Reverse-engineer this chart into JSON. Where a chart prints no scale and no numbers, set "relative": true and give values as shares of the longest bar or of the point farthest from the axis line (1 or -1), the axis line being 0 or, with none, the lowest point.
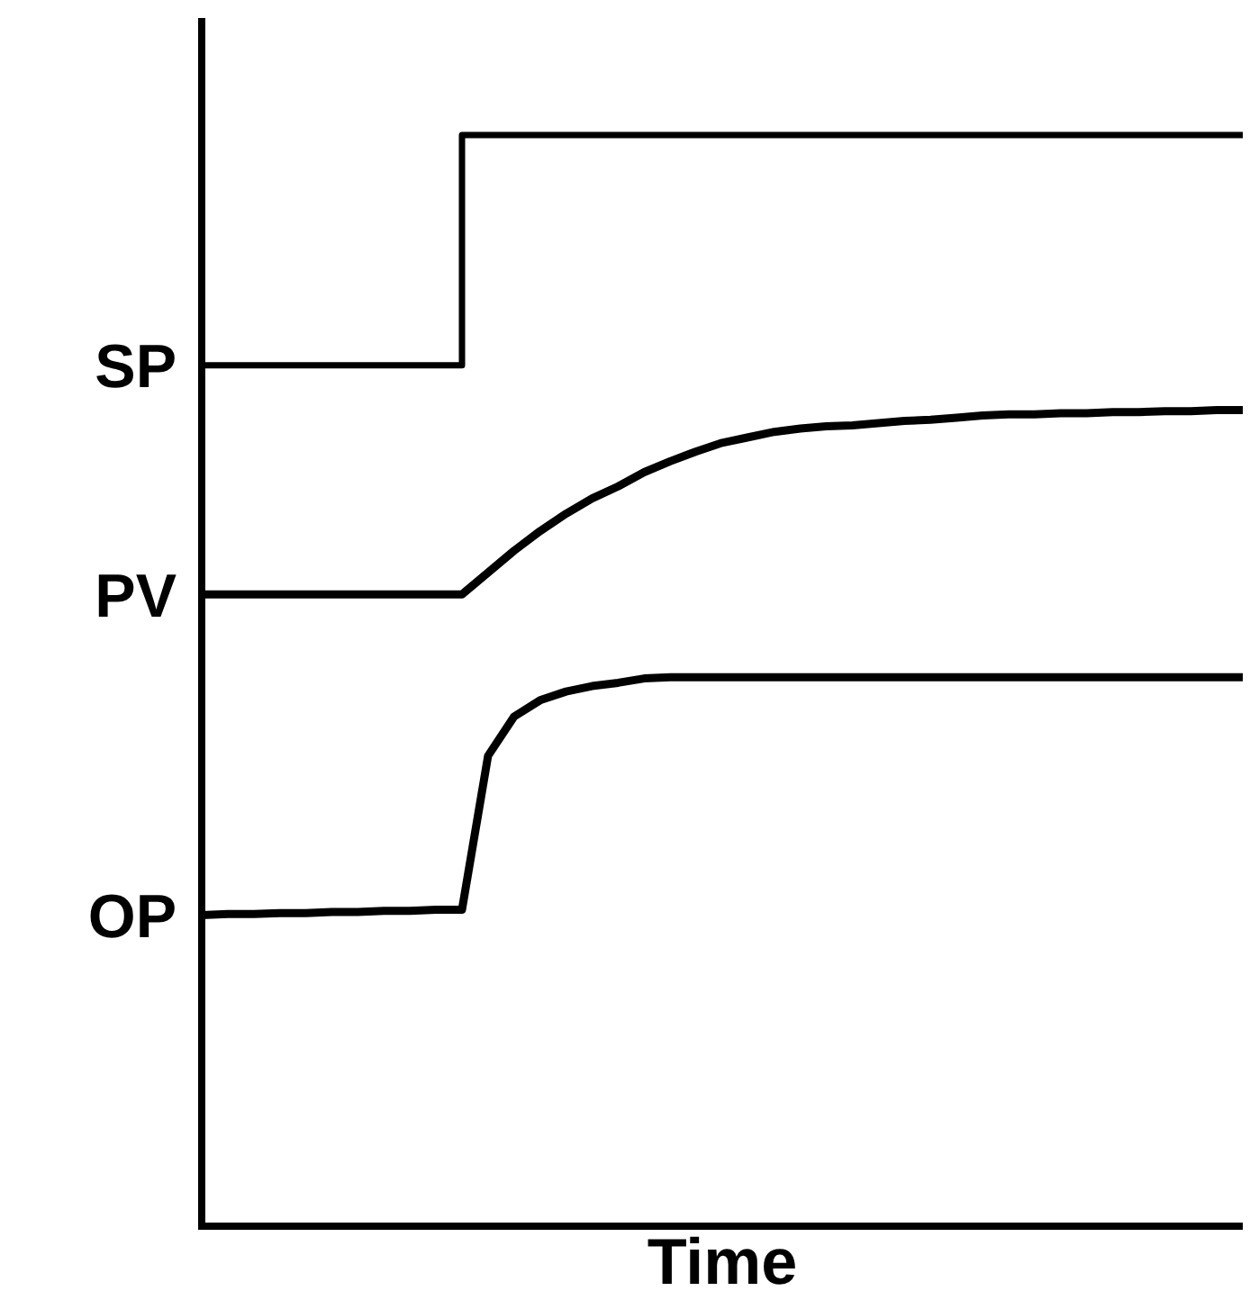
{
  "chart_data": {
    "type": "line",
    "xlabel": "Time",
    "relative": true,
    "categories": [
      null,
      null,
      null,
      null,
      null,
      null,
      null,
      null,
      null,
      null,
      null,
      null,
      null,
      null,
      null,
      null,
      null,
      null,
      null,
      null,
      null,
      null,
      null,
      null,
      null,
      null,
      null,
      null,
      null,
      null,
      null,
      null,
      null,
      null,
      null,
      null,
      null,
      null,
      null,
      null,
      null
    ],
    "series": [
      {
        "name": "SP",
        "type": "step",
        "color": "#000000",
        "values": [
          0.789,
          0.789,
          0.789,
          0.789,
          0.789,
          0.789,
          0.789,
          0.789,
          0.789,
          0.789,
          1,
          1,
          1,
          1,
          1,
          1,
          1,
          1,
          1,
          1,
          1,
          1,
          1,
          1,
          1,
          1,
          1,
          1,
          1,
          1,
          1,
          1,
          1,
          1,
          1,
          1,
          1,
          1,
          1,
          1,
          1
        ]
      },
      {
        "name": "PV",
        "color": "#000000",
        "values": [
          0.579,
          0.579,
          0.579,
          0.579,
          0.579,
          0.579,
          0.579,
          0.579,
          0.579,
          0.579,
          0.579,
          0.599,
          0.619,
          0.637,
          0.653,
          0.667,
          0.678,
          0.691,
          0.701,
          0.71,
          0.718,
          0.723,
          0.728,
          0.731,
          0.733,
          0.734,
          0.736,
          0.738,
          0.739,
          0.741,
          0.743,
          0.744,
          0.744,
          0.745,
          0.745,
          0.746,
          0.746,
          0.747,
          0.747,
          0.748,
          0.748
        ]
      },
      {
        "name": "OP",
        "color": "#000000",
        "values": [
          0.285,
          0.286,
          0.286,
          0.287,
          0.287,
          0.288,
          0.288,
          0.289,
          0.289,
          0.29,
          0.29,
          0.431,
          0.467,
          0.482,
          0.49,
          0.495,
          0.498,
          0.502,
          0.503,
          0.503,
          0.503,
          0.503,
          0.503,
          0.503,
          0.503,
          0.503,
          0.503,
          0.503,
          0.503,
          0.503,
          0.503,
          0.503,
          0.503,
          0.503,
          0.503,
          0.503,
          0.503,
          0.503,
          0.503,
          0.503,
          0.503
        ]
      }
    ]
  }
}
